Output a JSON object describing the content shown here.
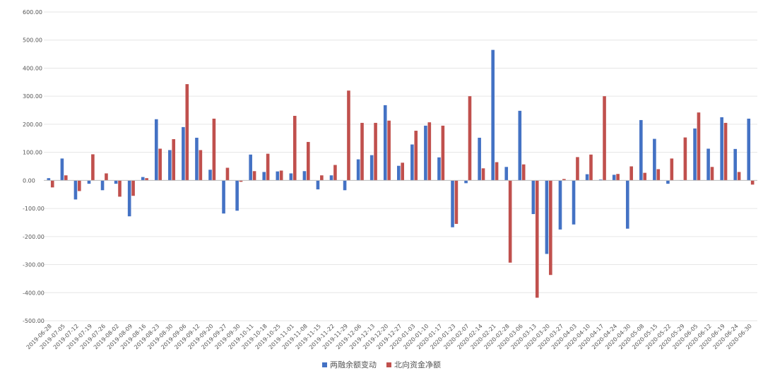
{
  "chart_data": {
    "type": "bar",
    "title": "",
    "xlabel": "",
    "ylabel": "",
    "ylim": [
      -500,
      600
    ],
    "yticks": [
      -500,
      -400,
      -300,
      -200,
      -100,
      0,
      100,
      200,
      300,
      400,
      500,
      600
    ],
    "ytick_labels": [
      "-500.00",
      "-400.00",
      "-300.00",
      "-200.00",
      "-100.00",
      "0.00",
      "100.00",
      "200.00",
      "300.00",
      "400.00",
      "500.00",
      "600.00"
    ],
    "grid": true,
    "legend_position": "bottom",
    "categories": [
      "2019-06-28",
      "2019-07-05",
      "2019-07-12",
      "2019-07-19",
      "2019-07-26",
      "2019-08-02",
      "2019-08-09",
      "2019-08-16",
      "2019-08-23",
      "2019-08-30",
      "2019-09-06",
      "2019-09-12",
      "2019-09-20",
      "2019-09-27",
      "2019-09-30",
      "2019-10-11",
      "2019-10-18",
      "2019-10-25",
      "2019-11-01",
      "2019-11-08",
      "2019-11-15",
      "2019-11-22",
      "2019-11-29",
      "2019-12-06",
      "2019-12-13",
      "2019-12-20",
      "2019-12-27",
      "2020-01-03",
      "2020-01-10",
      "2020-01-17",
      "2020-01-23",
      "2020-02-07",
      "2020-02-14",
      "2020-02-21",
      "2020-02-28",
      "2020-03-06",
      "2020-03-13",
      "2020-03-20",
      "2020-03-27",
      "2020-04-03",
      "2020-04-10",
      "2020-04-17",
      "2020-04-24",
      "2020-04-30",
      "2020-05-08",
      "2020-05-15",
      "2020-05-22",
      "2020-05-29",
      "2020-06-05",
      "2020-06-12",
      "2020-06-19",
      "2020-06-24",
      "2020-06-30"
    ],
    "series": [
      {
        "name": "两融余额变动",
        "color": "#4472C4",
        "values": [
          8,
          78,
          -68,
          -12,
          -35,
          -12,
          -128,
          12,
          218,
          108,
          190,
          152,
          38,
          -118,
          -108,
          92,
          30,
          32,
          25,
          33,
          -32,
          18,
          -35,
          75,
          90,
          268,
          52,
          128,
          195,
          82,
          -167,
          -10,
          152,
          465,
          48,
          248,
          -120,
          -262,
          -175,
          -157,
          22,
          3,
          20,
          -172,
          215,
          148,
          -12,
          0,
          185,
          113,
          225,
          112,
          220
        ]
      },
      {
        "name": "北向资金净额",
        "color": "#C0504D",
        "values": [
          -25,
          18,
          -38,
          93,
          25,
          -58,
          -55,
          8,
          113,
          147,
          343,
          108,
          220,
          45,
          -5,
          33,
          95,
          35,
          230,
          137,
          18,
          55,
          320,
          205,
          205,
          213,
          63,
          177,
          207,
          195,
          -155,
          300,
          43,
          65,
          -293,
          57,
          -418,
          -337,
          5,
          83,
          92,
          300,
          23,
          50,
          27,
          40,
          78,
          153,
          242,
          48,
          205,
          30,
          -15
        ]
      }
    ]
  }
}
